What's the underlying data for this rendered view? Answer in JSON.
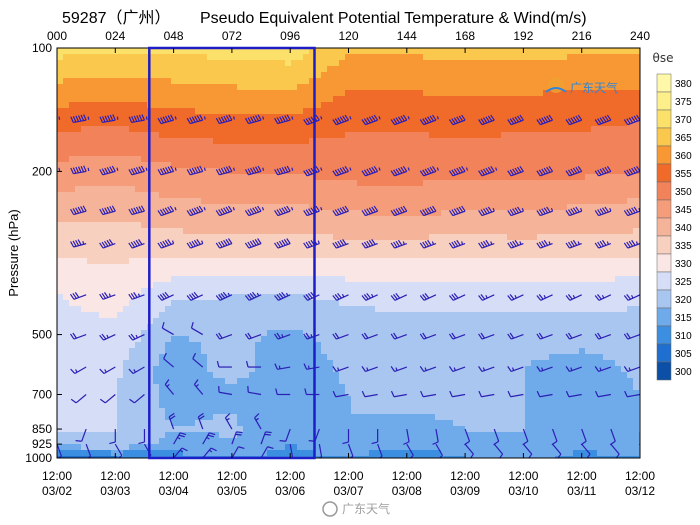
{
  "header": {
    "station_title": "59287（广州）",
    "main_title": "Pseudo Equivalent Potential Temperature & Wind(m/s)"
  },
  "watermarks": {
    "top_right": "广东天气",
    "bottom": "广东天气"
  },
  "chart_data": {
    "type": "heatmap",
    "title": "Pseudo Equivalent Potential Temperature & Wind(m/s)",
    "ylabel": "Pressure (hPa)",
    "y_scale": "log",
    "y_ticks": [
      100,
      200,
      500,
      700,
      850,
      925,
      1000
    ],
    "ylim": [
      1000,
      100
    ],
    "top_hours": [
      "000",
      "024",
      "048",
      "072",
      "096",
      "120",
      "144",
      "168",
      "192",
      "216",
      "240"
    ],
    "bottom_time_labels": [
      [
        "12:00",
        "03/02"
      ],
      [
        "12:00",
        "03/03"
      ],
      [
        "12:00",
        "03/04"
      ],
      [
        "12:00",
        "03/05"
      ],
      [
        "12:00",
        "03/06"
      ],
      [
        "12:00",
        "03/07"
      ],
      [
        "12:00",
        "03/08"
      ],
      [
        "12:00",
        "03/09"
      ],
      [
        "12:00",
        "03/10"
      ],
      [
        "12:00",
        "03/11"
      ],
      [
        "12:00",
        "03/12"
      ]
    ],
    "colorbar": {
      "label": "θse",
      "levels": [
        380,
        375,
        370,
        365,
        360,
        355,
        350,
        345,
        340,
        335,
        330,
        325,
        320,
        315,
        310,
        305,
        300
      ],
      "colors": [
        "#fff8a8",
        "#fdef8a",
        "#fbe06a",
        "#f9c84c",
        "#f79834",
        "#f06a2a",
        "#f2825a",
        "#f59d7a",
        "#f5b49a",
        "#f7d0c0",
        "#fae6e4",
        "#d6def7",
        "#a9c6f0",
        "#6faaea",
        "#3b8ee0",
        "#1f6fd0",
        "#0b4fa6"
      ]
    },
    "theta_field": {
      "hours": [
        0,
        24,
        48,
        72,
        96,
        120,
        144,
        168,
        192,
        216,
        240
      ],
      "pressure_levels": [
        100,
        150,
        200,
        250,
        300,
        400,
        500,
        600,
        700,
        850,
        925,
        1000
      ],
      "values_K": [
        [
          372,
          371,
          371,
          372,
          373,
          366,
          366,
          367,
          367,
          366,
          366
        ],
        [
          357,
          356,
          358,
          359,
          359,
          356,
          356,
          357,
          356,
          356,
          355
        ],
        [
          348,
          347,
          349,
          350,
          350,
          352,
          352,
          351,
          352,
          351,
          350
        ],
        [
          342,
          341,
          343,
          344,
          344,
          345,
          346,
          345,
          345,
          344,
          343
        ],
        [
          337,
          337,
          338,
          338,
          338,
          339,
          339,
          338,
          339,
          338,
          338
        ],
        [
          330,
          332,
          326,
          325,
          325,
          326,
          327,
          327,
          327,
          327,
          326
        ],
        [
          328,
          329,
          320,
          321,
          319,
          322,
          323,
          322,
          322,
          322,
          323
        ],
        [
          327,
          326,
          317,
          322,
          317,
          321,
          322,
          322,
          320,
          318,
          321
        ],
        [
          327,
          325,
          318,
          319,
          316,
          320,
          321,
          321,
          320,
          317,
          320
        ],
        [
          326,
          325,
          320,
          321,
          315,
          320,
          319,
          320,
          320,
          319,
          320
        ],
        [
          322,
          324,
          318,
          319,
          315,
          317,
          316,
          318,
          318,
          316,
          317
        ],
        [
          309,
          310,
          313,
          314,
          314,
          315,
          312,
          315,
          316,
          314,
          315
        ]
      ]
    },
    "wind_barbs": {
      "hours": [
        0,
        12,
        24,
        36,
        48,
        60,
        72,
        84,
        96,
        108,
        120,
        132,
        144,
        156,
        168,
        180,
        192,
        204,
        216,
        228,
        240
      ],
      "pressure_levels": [
        150,
        200,
        250,
        300,
        400,
        500,
        600,
        700,
        850,
        925,
        1000
      ],
      "direction_deg": [
        [
          260,
          260,
          260,
          260,
          255,
          255,
          255,
          255,
          255,
          250,
          250,
          250,
          250,
          250,
          250,
          250,
          250,
          250,
          250,
          250,
          250
        ],
        [
          260,
          260,
          255,
          255,
          255,
          255,
          255,
          255,
          255,
          250,
          250,
          250,
          250,
          250,
          250,
          250,
          250,
          250,
          250,
          250,
          250
        ],
        [
          255,
          255,
          255,
          255,
          250,
          250,
          250,
          250,
          250,
          250,
          250,
          250,
          250,
          250,
          250,
          250,
          250,
          250,
          250,
          250,
          250
        ],
        [
          255,
          255,
          250,
          250,
          250,
          250,
          250,
          250,
          250,
          250,
          250,
          250,
          250,
          250,
          250,
          250,
          250,
          250,
          250,
          250,
          250
        ],
        [
          250,
          250,
          250,
          250,
          245,
          245,
          245,
          245,
          245,
          245,
          245,
          245,
          245,
          245,
          245,
          245,
          245,
          245,
          245,
          245,
          245
        ],
        [
          250,
          250,
          245,
          245,
          300,
          300,
          250,
          250,
          250,
          250,
          250,
          250,
          250,
          250,
          250,
          250,
          250,
          250,
          250,
          250,
          250
        ],
        [
          240,
          240,
          240,
          240,
          310,
          310,
          270,
          270,
          260,
          260,
          250,
          250,
          250,
          250,
          250,
          250,
          250,
          250,
          250,
          250,
          250
        ],
        [
          230,
          230,
          230,
          230,
          320,
          320,
          280,
          280,
          270,
          270,
          260,
          260,
          260,
          260,
          260,
          260,
          260,
          260,
          260,
          260,
          260
        ],
        [
          200,
          200,
          180,
          180,
          340,
          340,
          330,
          330,
          200,
          200,
          180,
          180,
          170,
          170,
          160,
          160,
          160,
          160,
          160,
          160,
          160
        ],
        [
          160,
          160,
          150,
          150,
          30,
          30,
          20,
          20,
          170,
          170,
          160,
          160,
          150,
          150,
          140,
          140,
          140,
          140,
          140,
          140,
          140
        ],
        [
          140,
          140,
          130,
          130,
          40,
          40,
          30,
          30,
          150,
          150,
          140,
          140,
          130,
          130,
          120,
          120,
          120,
          120,
          120,
          120,
          120
        ]
      ],
      "speed_ms": [
        [
          34,
          34,
          36,
          36,
          38,
          38,
          40,
          40,
          40,
          38,
          36,
          36,
          34,
          34,
          32,
          32,
          30,
          30,
          30,
          30,
          30
        ],
        [
          36,
          36,
          38,
          38,
          40,
          40,
          42,
          42,
          42,
          40,
          38,
          38,
          36,
          36,
          34,
          34,
          32,
          32,
          32,
          32,
          32
        ],
        [
          30,
          30,
          32,
          32,
          34,
          34,
          36,
          36,
          36,
          34,
          32,
          32,
          30,
          30,
          30,
          28,
          28,
          28,
          28,
          28,
          28
        ],
        [
          24,
          24,
          26,
          26,
          28,
          28,
          30,
          30,
          30,
          28,
          26,
          26,
          24,
          24,
          24,
          22,
          22,
          22,
          22,
          22,
          22
        ],
        [
          16,
          16,
          18,
          18,
          20,
          20,
          22,
          22,
          22,
          20,
          18,
          18,
          16,
          16,
          16,
          14,
          14,
          14,
          14,
          14,
          14
        ],
        [
          10,
          10,
          12,
          12,
          6,
          6,
          10,
          10,
          12,
          12,
          10,
          10,
          10,
          10,
          10,
          10,
          10,
          10,
          10,
          10,
          10
        ],
        [
          8,
          8,
          8,
          8,
          6,
          6,
          6,
          6,
          8,
          8,
          8,
          8,
          8,
          8,
          8,
          8,
          8,
          8,
          8,
          8,
          8
        ],
        [
          6,
          6,
          6,
          6,
          8,
          8,
          6,
          6,
          6,
          6,
          6,
          6,
          6,
          6,
          6,
          6,
          6,
          6,
          6,
          6,
          6
        ],
        [
          4,
          4,
          6,
          6,
          10,
          10,
          8,
          8,
          6,
          6,
          6,
          6,
          6,
          6,
          6,
          6,
          6,
          6,
          6,
          6,
          6
        ],
        [
          4,
          4,
          6,
          6,
          12,
          12,
          10,
          10,
          6,
          6,
          6,
          6,
          6,
          6,
          6,
          6,
          6,
          6,
          6,
          6,
          6
        ],
        [
          4,
          4,
          4,
          4,
          8,
          8,
          6,
          6,
          4,
          4,
          4,
          4,
          4,
          4,
          4,
          4,
          4,
          4,
          4,
          4,
          4
        ]
      ]
    },
    "highlight_box": {
      "x_hours": [
        38,
        106
      ],
      "pressure": [
        100,
        1000
      ],
      "color": "#1e1ec8"
    }
  }
}
